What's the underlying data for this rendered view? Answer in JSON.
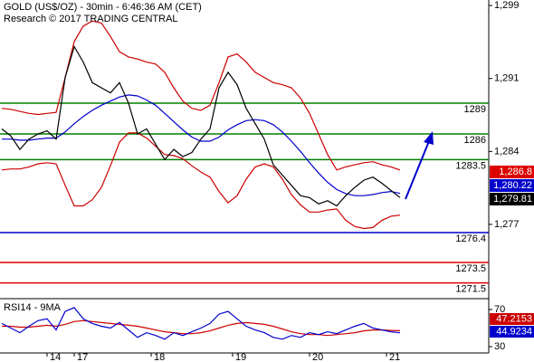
{
  "chart_data": [
    {
      "type": "line",
      "title": "GOLD (US$/OZ) - 30min - 6:46:36 AM (CET)",
      "subtitle": "Research © 2017 TRADING CENTRAL",
      "x": [
        0,
        1,
        2,
        3,
        4,
        5,
        6,
        7,
        8,
        9,
        10,
        11,
        12,
        13,
        14,
        15,
        16,
        17,
        18,
        19,
        20,
        21,
        22,
        23,
        24,
        25,
        26,
        27,
        28,
        29,
        30,
        31,
        32,
        33,
        34,
        35,
        36,
        37,
        38,
        39,
        40,
        41,
        42,
        43,
        44
      ],
      "xlim": [
        -0.2,
        53.8
      ],
      "xticks": [
        {
          "value": 5,
          "label": "14"
        },
        {
          "value": 8,
          "label": "17"
        },
        {
          "value": 16.5,
          "label": "18"
        },
        {
          "value": 25.5,
          "label": "19"
        },
        {
          "value": 34,
          "label": "20"
        },
        {
          "value": 42.5,
          "label": "21"
        }
      ],
      "ylim": [
        1270.15,
        1299.04
      ],
      "yticks": [
        {
          "value": 1298.5,
          "label": "1,299"
        },
        {
          "value": 1291.4,
          "label": "1,291"
        },
        {
          "value": 1284.3,
          "label": "1,284"
        },
        {
          "value": 1277.2,
          "label": "1,277"
        }
      ],
      "series": [
        {
          "color": "#cc0000",
          "values": [
            1288.5,
            1288.4,
            1288.2,
            1288.0,
            1287.9,
            1288.0,
            1288.1,
            1291.5,
            1295.0,
            1296.5,
            1297.0,
            1296.8,
            1295.5,
            1294.0,
            1293.5,
            1293.3,
            1293.0,
            1292.8,
            1292.0,
            1290.5,
            1289.2,
            1288.5,
            1288.3,
            1288.8,
            1291.0,
            1293.5,
            1293.8,
            1293.0,
            1292.0,
            1291.5,
            1291.0,
            1290.8,
            1290.5,
            1289.5,
            1288.0,
            1286.0,
            1284.0,
            1282.5,
            1282.8,
            1283.0,
            1283.2,
            1283.3,
            1283.0,
            1282.8,
            1282.5
          ]
        },
        {
          "color": "#cc0000",
          "values": [
            1282.5,
            1282.6,
            1282.6,
            1282.8,
            1283.1,
            1283.2,
            1283.1,
            1281.0,
            1279.0,
            1279.0,
            1279.6,
            1280.8,
            1282.9,
            1285.2,
            1286.1,
            1286.1,
            1285.6,
            1284.8,
            1284.0,
            1283.9,
            1283.6,
            1282.9,
            1282.3,
            1281.8,
            1280.4,
            1279.3,
            1280.0,
            1281.6,
            1282.8,
            1283.1,
            1282.8,
            1281.6,
            1280.1,
            1279.1,
            1278.4,
            1278.4,
            1278.6,
            1278.7,
            1277.6,
            1277.0,
            1276.8,
            1276.9,
            1277.6,
            1278.0,
            1278.1
          ]
        },
        {
          "color": "#0000cc",
          "values": [
            1285.5,
            1285.5,
            1285.4,
            1285.4,
            1285.5,
            1285.6,
            1285.6,
            1286.2,
            1287.0,
            1287.7,
            1288.3,
            1288.8,
            1289.2,
            1289.6,
            1289.8,
            1289.7,
            1289.3,
            1288.8,
            1288.0,
            1287.2,
            1286.4,
            1285.7,
            1285.3,
            1285.3,
            1285.7,
            1286.4,
            1286.9,
            1287.3,
            1287.4,
            1287.3,
            1286.9,
            1286.2,
            1285.3,
            1284.3,
            1283.2,
            1282.2,
            1281.3,
            1280.6,
            1280.2,
            1280.0,
            1280.0,
            1280.1,
            1280.3,
            1280.4,
            1280.22
          ]
        },
        {
          "color": "#000000",
          "values": [
            1286.5,
            1285.8,
            1284.5,
            1285.5,
            1286.0,
            1286.3,
            1285.5,
            1291.5,
            1294.5,
            1293.0,
            1291.0,
            1290.5,
            1290.0,
            1291.0,
            1289.0,
            1286.0,
            1286.5,
            1285.0,
            1283.5,
            1284.5,
            1283.8,
            1284.2,
            1285.5,
            1286.5,
            1290.5,
            1292.0,
            1290.8,
            1288.5,
            1287.0,
            1285.5,
            1283.0,
            1282.0,
            1281.0,
            1280.0,
            1279.8,
            1279.2,
            1279.5,
            1279.0,
            1280.0,
            1280.8,
            1281.5,
            1281.8,
            1281.2,
            1280.5,
            1279.81
          ]
        }
      ],
      "levels": [
        {
          "value": 1289,
          "color": "#008000"
        },
        {
          "value": 1286,
          "color": "#008000"
        },
        {
          "value": 1283.5,
          "color": "#008000"
        },
        {
          "value": 1276.4,
          "color": "#0000cc"
        },
        {
          "value": 1273.5,
          "color": "#dd0000"
        },
        {
          "value": 1271.5,
          "color": "#dd0000"
        }
      ],
      "price_boxes": [
        {
          "label": "1,286.8",
          "color": "#dd0000"
        },
        {
          "label": "1,280.22",
          "color": "#0000cc"
        },
        {
          "label": "1,279.81",
          "color": "#000000"
        }
      ]
    },
    {
      "type": "line",
      "title": "RSI14 - 9MA",
      "ylim": [
        23.2,
        81.7
      ],
      "yticks": [
        70,
        30
      ],
      "series": [
        {
          "color": "#cc0000",
          "values": [
            52,
            52,
            51,
            51,
            52,
            53,
            52,
            54,
            57,
            58,
            57,
            56,
            55,
            54,
            53,
            52,
            50,
            48,
            46,
            45,
            44,
            44,
            45,
            47,
            50,
            53,
            55,
            56,
            55,
            54,
            52,
            49,
            46,
            44,
            43,
            43,
            42,
            43,
            44,
            45,
            47,
            48,
            48,
            47.5,
            47.2153
          ]
        },
        {
          "color": "#0000cc",
          "values": [
            55,
            50,
            45,
            52,
            58,
            60,
            48,
            68,
            72,
            60,
            55,
            52,
            50,
            56,
            48,
            40,
            45,
            42,
            38,
            45,
            42,
            46,
            50,
            55,
            65,
            68,
            60,
            52,
            48,
            45,
            40,
            38,
            42,
            40,
            45,
            43,
            46,
            44,
            48,
            52,
            55,
            50,
            48,
            46,
            44.9234
          ]
        }
      ]
    }
  ]
}
